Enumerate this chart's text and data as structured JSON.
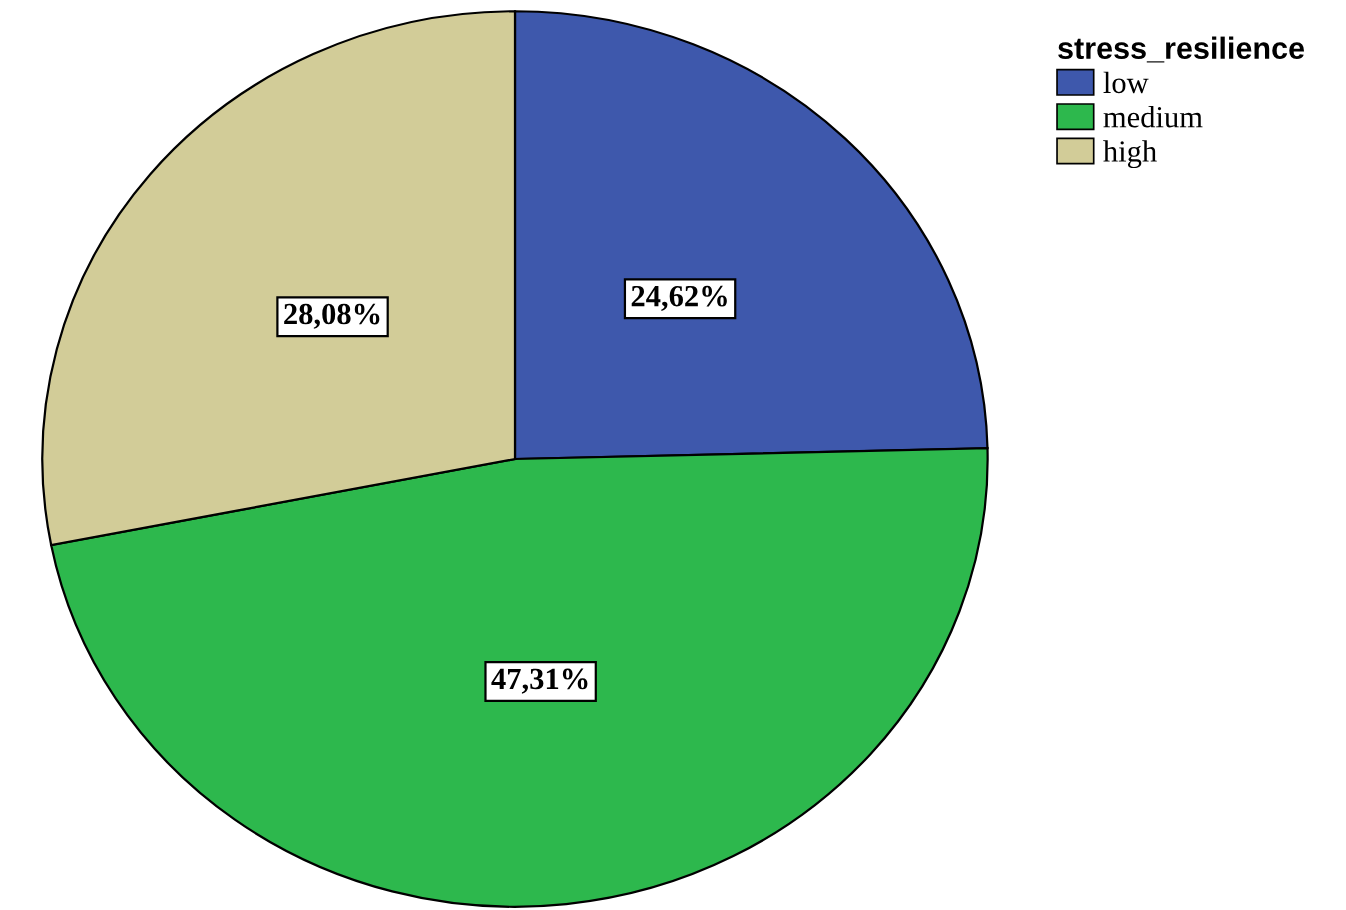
{
  "chart_data": {
    "type": "pie",
    "legend_title": "stress_resilience",
    "legend": "top right",
    "categories": [
      "low",
      "medium",
      "high"
    ],
    "values": [
      24.62,
      47.31,
      28.08
    ],
    "colors": [
      "#3e58ac",
      "#2db84d",
      "#d2cc98"
    ],
    "value_labels": [
      "24,62%",
      "47,31%",
      "28,08%"
    ]
  }
}
